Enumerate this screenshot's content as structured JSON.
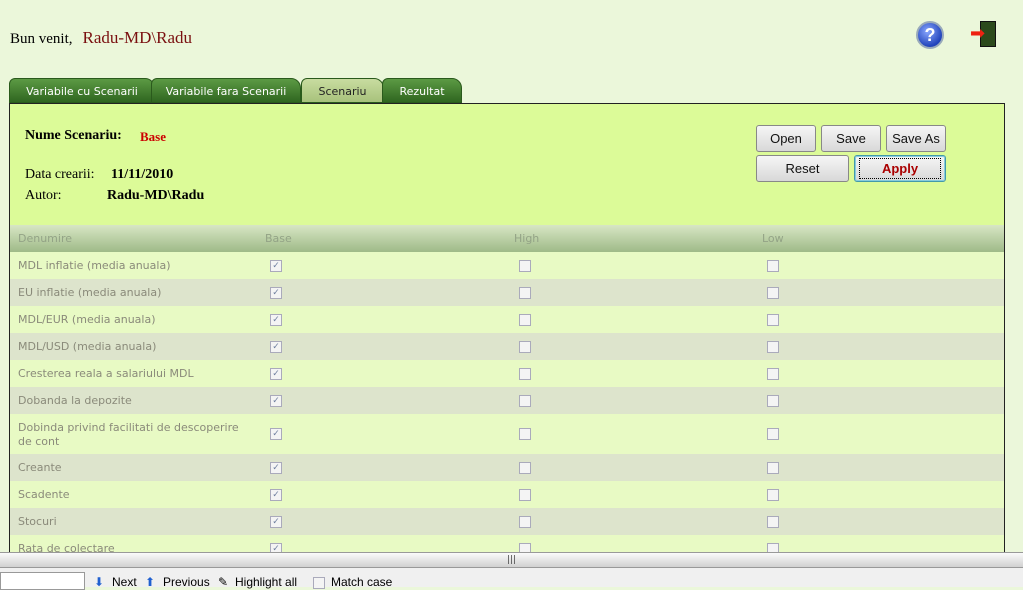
{
  "header": {
    "welcome": "Bun venit,",
    "user": "Radu-MD\\Radu"
  },
  "tabs": [
    {
      "label": "Variabile cu Scenarii"
    },
    {
      "label": "Variabile fara Scenarii"
    },
    {
      "label": "Scenariu",
      "active": true
    },
    {
      "label": "Rezultat"
    }
  ],
  "scenario": {
    "name_label": "Nume Scenariu:",
    "name": "Base",
    "date_label": "Data crearii:",
    "date": "11/11/2010",
    "author_label": "Autor:",
    "author": "Radu-MD\\Radu"
  },
  "buttons": {
    "open": "Open",
    "save": "Save",
    "save_as": "Save As",
    "reset": "Reset",
    "apply": "Apply"
  },
  "table": {
    "headers": [
      "Denumire",
      "Base",
      "High",
      "Low"
    ],
    "rows": [
      {
        "name": "MDL inflatie (media anuala)",
        "base": true,
        "high": false,
        "low": false
      },
      {
        "name": "EU inflatie (media anuala)",
        "base": true,
        "high": false,
        "low": false
      },
      {
        "name": "MDL/EUR (media anuala)",
        "base": true,
        "high": false,
        "low": false
      },
      {
        "name": "MDL/USD (media anuala)",
        "base": true,
        "high": false,
        "low": false
      },
      {
        "name": "Cresterea reala a salariului MDL",
        "base": true,
        "high": false,
        "low": false
      },
      {
        "name": "Dobanda la depozite",
        "base": true,
        "high": false,
        "low": false
      },
      {
        "name": "Dobinda privind facilitati de descoperire de cont",
        "base": true,
        "high": false,
        "low": false
      },
      {
        "name": "Creante",
        "base": true,
        "high": false,
        "low": false
      },
      {
        "name": "Scadente",
        "base": true,
        "high": false,
        "low": false
      },
      {
        "name": "Stocuri",
        "base": true,
        "high": false,
        "low": false
      },
      {
        "name": "Rata de colectare",
        "base": true,
        "high": false,
        "low": false
      }
    ]
  },
  "findbar": {
    "next": "Next",
    "previous": "Previous",
    "highlight": "Highlight all",
    "match_case": "Match case"
  },
  "colors": {
    "accent": "#7a1010",
    "apply": "#aa0000",
    "panel": "#dcfb98"
  }
}
